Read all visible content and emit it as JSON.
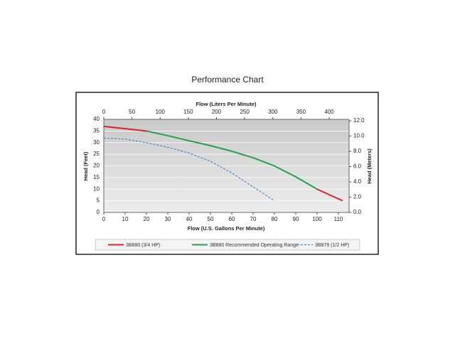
{
  "chart_data": {
    "type": "line",
    "title": "Performance Chart",
    "xlabel": "Flow (U.S. Gallons Per Minute)",
    "x2label": "Flow (Liters Per Minute)",
    "ylabel": "Head (Feet)",
    "y2label": "Head (Meters)",
    "xlim": [
      0,
      115
    ],
    "xticks": [
      0,
      10,
      20,
      30,
      40,
      50,
      60,
      70,
      80,
      90,
      100,
      110
    ],
    "x2lim": [
      0,
      435.3
    ],
    "x2ticks": [
      0,
      50,
      100,
      150,
      200,
      250,
      300,
      350,
      400
    ],
    "ylim": [
      0,
      40
    ],
    "yticks": [
      0,
      5,
      10,
      15,
      20,
      25,
      30,
      35,
      40
    ],
    "y2lim": [
      0,
      12.19
    ],
    "y2ticks": [
      {
        "value": 0,
        "label": "0.0"
      },
      {
        "value": 2,
        "label": "2.0"
      },
      {
        "value": 4,
        "label": "4.0"
      },
      {
        "value": 6,
        "label": "6.0"
      },
      {
        "value": 8,
        "label": "8.0"
      },
      {
        "value": 10,
        "label": "10.0"
      },
      {
        "value": 12,
        "label": "12.0"
      }
    ],
    "grid": true,
    "legend": "bottom",
    "series": [
      {
        "name": "3B880 (3/4 HP)",
        "color": "#d9232a",
        "dash": false,
        "x": [
          0,
          10,
          20,
          90,
          100,
          112
        ],
        "values": [
          37,
          36,
          35,
          null,
          10,
          5
        ]
      },
      {
        "name": "3B880 Recommended Operating Range",
        "color": "#23a24a",
        "dash": false,
        "x": [
          20,
          30,
          40,
          50,
          60,
          70,
          80,
          90,
          100
        ],
        "values": [
          35,
          33,
          30.8,
          28.7,
          26.3,
          23.5,
          20,
          15.3,
          10
        ]
      },
      {
        "name": "3B879 (1/2 HP)",
        "color": "#4a86c8",
        "dash": true,
        "x": [
          0,
          10,
          20,
          30,
          40,
          50,
          60,
          70,
          80
        ],
        "values": [
          32,
          31.5,
          30,
          28,
          25.5,
          22,
          17,
          11,
          5
        ]
      }
    ]
  }
}
